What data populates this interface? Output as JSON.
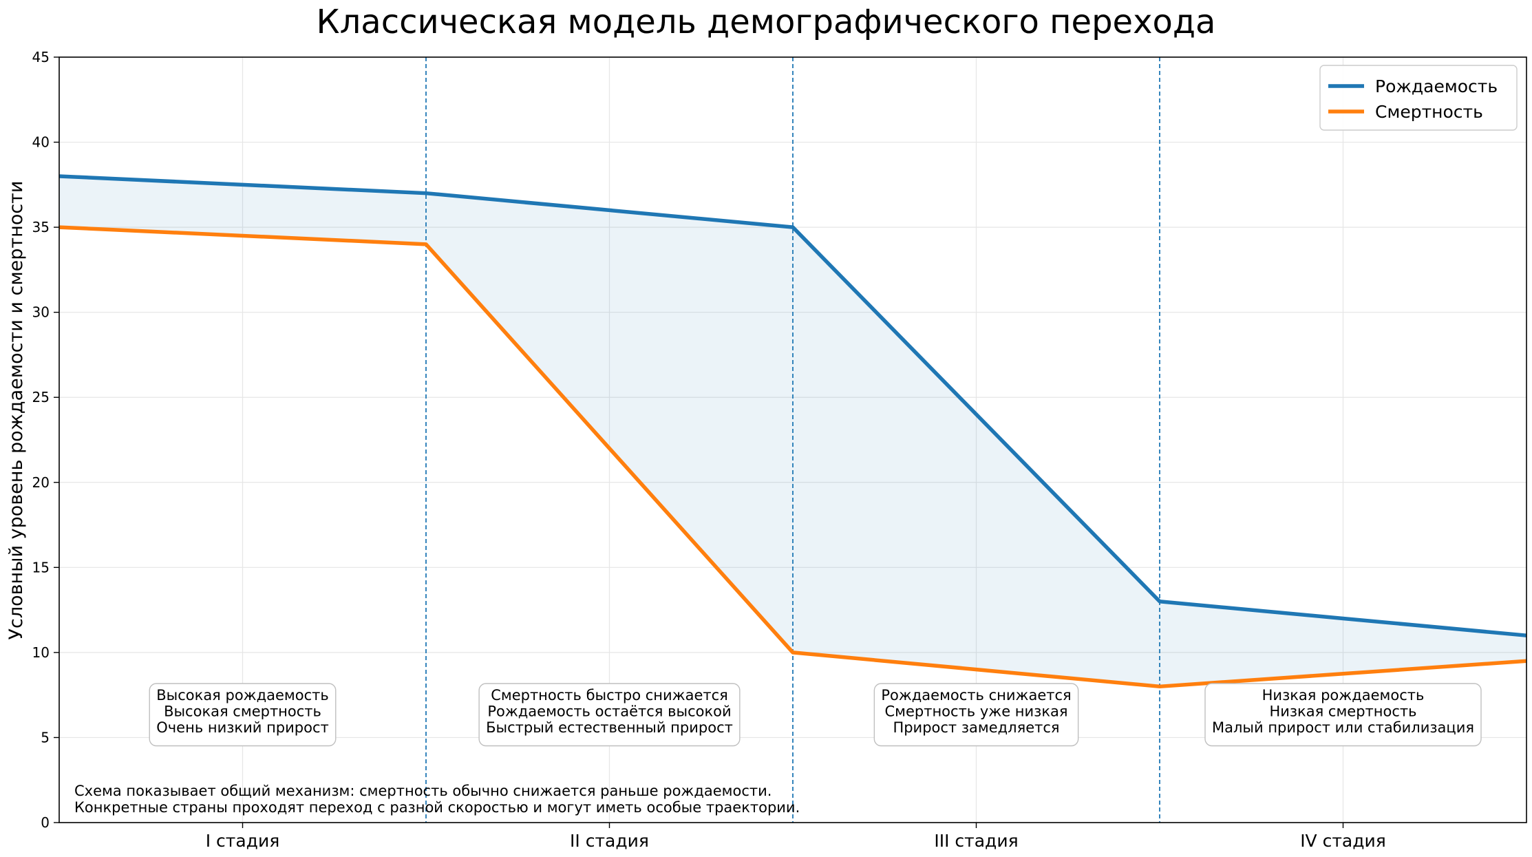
{
  "chart_data": {
    "type": "line",
    "title": "Классическая модель демографического перехода",
    "xlabel": "",
    "ylabel": "Условный уровень рождаемости и смертности",
    "xlim": [
      0,
      4
    ],
    "ylim": [
      0,
      45
    ],
    "yticks": [
      0,
      5,
      10,
      15,
      20,
      25,
      30,
      35,
      40,
      45
    ],
    "categories": [
      "I стадия",
      "II стадия",
      "III стадия",
      "IV стадия"
    ],
    "category_positions": [
      0.5,
      1.5,
      2.5,
      3.5
    ],
    "stage_boundaries": [
      1,
      2,
      3
    ],
    "grid": true,
    "legend_position": "top-right",
    "fill_between": true,
    "series": [
      {
        "name": "Рождаемость",
        "color": "#1f77b4",
        "x": [
          0,
          1,
          1.5,
          2,
          2.5,
          3,
          3.5,
          4
        ],
        "y": [
          38,
          37,
          36,
          35,
          24,
          13,
          12,
          11
        ]
      },
      {
        "name": "Смертность",
        "color": "#ff7f0e",
        "x": [
          0,
          1,
          1.5,
          2,
          2.5,
          3,
          3.5,
          4
        ],
        "y": [
          35,
          34,
          22,
          10,
          9,
          8,
          8.75,
          9.5
        ]
      }
    ],
    "fill_color": "#1f77b4",
    "stage_boxes": [
      {
        "lines": [
          "Высокая рождаемость",
          "Высокая смертность",
          "Очень низкий прирост"
        ]
      },
      {
        "lines": [
          "Смертность быстро снижается",
          "Рождаемость остаётся высокой",
          "Быстрый естественный прирост"
        ]
      },
      {
        "lines": [
          "Рождаемость снижается",
          "Смертность уже низкая",
          "Прирост замедляется"
        ]
      },
      {
        "lines": [
          "Низкая рождаемость",
          "Низкая смертность",
          "Малый прирост или стабилизация"
        ]
      }
    ],
    "note_lines": [
      "Схема показывает общий механизм: смертность обычно снижается раньше рождаемости.",
      "Конкретные страны проходят переход с разной скоростью и могут иметь особые траектории."
    ]
  }
}
